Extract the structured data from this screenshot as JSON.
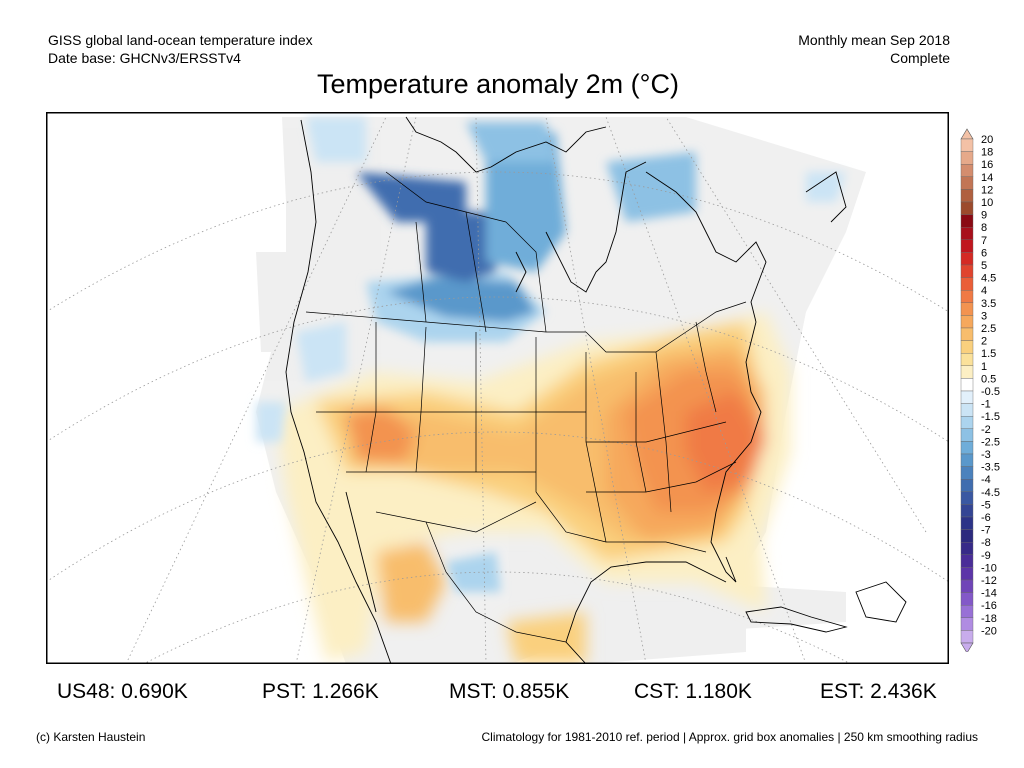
{
  "header": {
    "left_line1": "GISS global land-ocean temperature index",
    "left_line2": "Date base: GHCNv3/ERSSTv4",
    "right_line1": "Monthly mean Sep 2018",
    "right_line2": "Complete",
    "title": "Temperature anomaly 2m (°C)"
  },
  "colorbar": {
    "labels": [
      "20",
      "18",
      "16",
      "14",
      "12",
      "10",
      "9",
      "8",
      "7",
      "6",
      "5",
      "4.5",
      "4",
      "3.5",
      "3",
      "2.5",
      "2",
      "1.5",
      "1",
      "0.5",
      "-0.5",
      "-1",
      "-1.5",
      "-2",
      "-2.5",
      "-3",
      "-3.5",
      "-4",
      "-4.5",
      "-5",
      "-6",
      "-7",
      "-8",
      "-9",
      "-10",
      "-12",
      "-14",
      "-16",
      "-18",
      "-20"
    ],
    "colors": [
      "#f3c1a6",
      "#e6a98a",
      "#d48d6e",
      "#c27555",
      "#b0603f",
      "#9c4a2c",
      "#8a0a14",
      "#a8101c",
      "#c0161e",
      "#d42a24",
      "#e0442e",
      "#ea5e38",
      "#f07a45",
      "#f39350",
      "#f6a85c",
      "#f8bd6c",
      "#fad07e",
      "#fbe19a",
      "#fcefc4",
      "#ffffff",
      "#e2f0fb",
      "#cbe4f5",
      "#acd4ee",
      "#8dc1e4",
      "#6fadd9",
      "#5a98cb",
      "#4b82bd",
      "#406daf",
      "#3a58a2",
      "#344594",
      "#2c3388",
      "#2c2a7e",
      "#372a88",
      "#4a2d98",
      "#5c35a8",
      "#7045b8",
      "#8358c8",
      "#9870d6",
      "#b08ce2",
      "#c8acec"
    ]
  },
  "stats": [
    {
      "label": "US48: 0.690K"
    },
    {
      "label": "PST: 1.266K"
    },
    {
      "label": "MST: 0.855K"
    },
    {
      "label": "CST: 1.180K"
    },
    {
      "label": "EST: 2.436K"
    }
  ],
  "footer": {
    "left": "(c) Karsten Haustein",
    "right": "Climatology for 1981-2010 ref. period | Approx. grid box anomalies | 250 km smoothing radius"
  }
}
